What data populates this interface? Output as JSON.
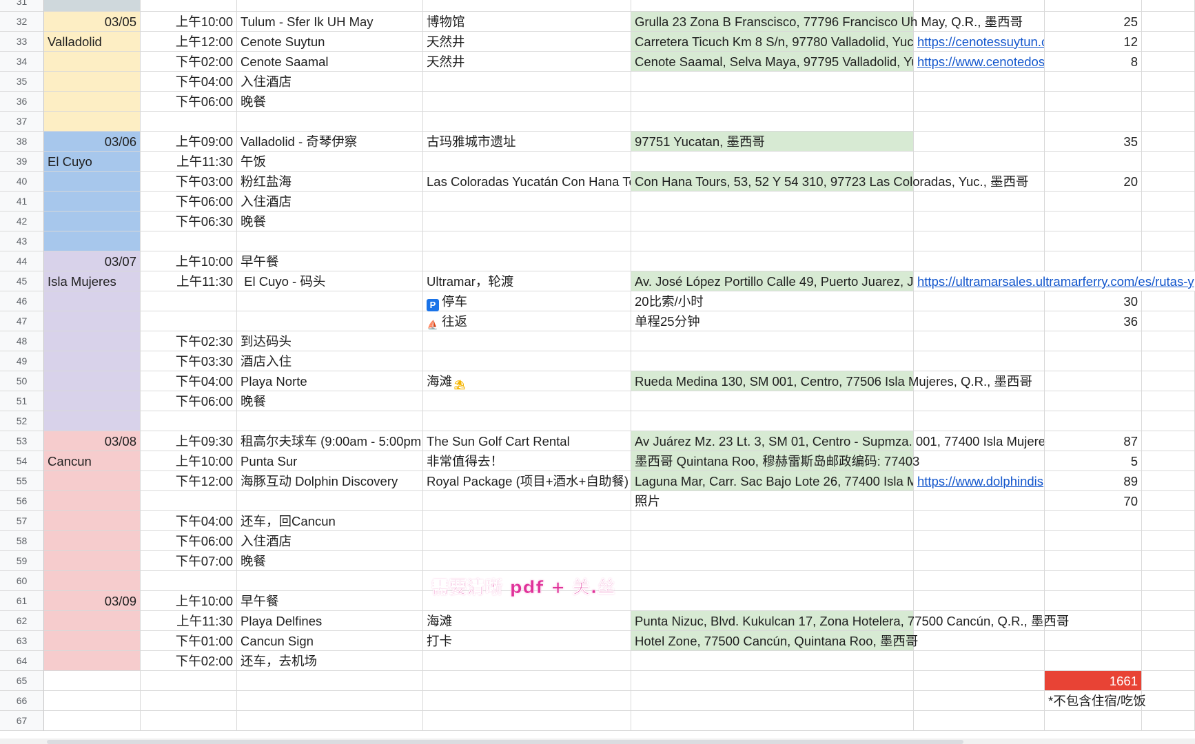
{
  "colors": {
    "yellow": "#fdeec4",
    "blue": "#a7c7ec",
    "lavender": "#d8d2ea",
    "pink": "#f6cccd",
    "green": "#d7ead3",
    "total_red": "#e84335",
    "link": "#1155cc"
  },
  "rows": [
    {
      "n": "31"
    },
    {
      "n": "32",
      "c1": "03/05",
      "c2": "上午10:00",
      "c3": "Tulum - Sfer Ik UH May",
      "c4": "博物馆",
      "c5": "Grulla 23 Zona B Franscisco, 77796 Francisco Uh May, Q.R., 墨西哥",
      "c7": "25"
    },
    {
      "n": "33",
      "c1": "Valladolid",
      "c2": "上午12:00",
      "c3": "Cenote Suytun",
      "c4": "天然井",
      "c5": "Carretera Ticuch Km 8 S/n, 97780 Valladolid, Yuc",
      "c6": "https://cenotessuytun.c",
      "c7": "12"
    },
    {
      "n": "34",
      "c2": "下午02:00",
      "c3": "Cenote Saamal",
      "c4": "天然井",
      "c5": "Cenote Saamal, Selva Maya, 97795 Valladolid, Yu",
      "c6": "https://www.cenotedos",
      "c7": "8"
    },
    {
      "n": "35",
      "c2": "下午04:00",
      "c3": "入住酒店"
    },
    {
      "n": "36",
      "c2": "下午06:00",
      "c3": "晚餐"
    },
    {
      "n": "37"
    },
    {
      "n": "38",
      "c1": "03/06",
      "c2": "上午09:00",
      "c3": "Valladolid - 奇琴伊察",
      "c4": "古玛雅城市遗址",
      "c5": "97751 Yucatan, 墨西哥",
      "c7": "35"
    },
    {
      "n": "39",
      "c1": "El Cuyo",
      "c2": "上午11:30",
      "c3": "午饭"
    },
    {
      "n": "40",
      "c2": "下午03:00",
      "c3": "粉红盐海",
      "c4": "Las Coloradas Yucatán Con Hana To",
      "c5": "Con Hana Tours, 53, 52 Y 54 310, 97723 Las Coloradas, Yuc., 墨西哥",
      "c7": "20"
    },
    {
      "n": "41",
      "c2": "下午06:00",
      "c3": "入住酒店"
    },
    {
      "n": "42",
      "c2": "下午06:30",
      "c3": "晚餐"
    },
    {
      "n": "43"
    },
    {
      "n": "44",
      "c1": "03/07",
      "c2": "上午10:00",
      "c3": "早午餐"
    },
    {
      "n": "45",
      "c1": "Isla Mujeres",
      "c2": "上午11:30",
      "c3": " El Cuyo - 码头",
      "c4": "Ultramar，轮渡",
      "c5": "Av. José López Portillo Calle 49, Puerto Juarez, J",
      "c6": "https://ultramarsales.ultramarferry.com/es/rutas-y"
    },
    {
      "n": "46",
      "c4": "停车",
      "c5": "20比索/小时",
      "c7": "30"
    },
    {
      "n": "47",
      "c4": "往返",
      "c5": "单程25分钟",
      "c7": "36"
    },
    {
      "n": "48",
      "c2": "下午02:30",
      "c3": "到达码头"
    },
    {
      "n": "49",
      "c2": "下午03:30",
      "c3": "酒店入住"
    },
    {
      "n": "50",
      "c2": "下午04:00",
      "c3": "Playa Norte",
      "c4": "海滩",
      "c5": "Rueda Medina 130, SM 001, Centro, 77506 Isla Mujeres, Q.R., 墨西哥"
    },
    {
      "n": "51",
      "c2": "下午06:00",
      "c3": "晚餐"
    },
    {
      "n": "52"
    },
    {
      "n": "53",
      "c1": "03/08",
      "c2": "上午09:30",
      "c3": "租高尔夫球车 (9:00am - 5:00pm",
      "c4": "The Sun Golf Cart Rental",
      "c5": "Av Juárez Mz. 23 Lt. 3, SM 01, Centro - Supmza. 001, 77400 Isla Mujere",
      "c7": "87"
    },
    {
      "n": "54",
      "c1": "Cancun",
      "c2": "上午10:00",
      "c3": "Punta Sur",
      "c4": "非常值得去！",
      "c5": "墨西哥 Quintana Roo, 穆赫雷斯岛邮政编码: 77403",
      "c7": "5"
    },
    {
      "n": "55",
      "c2": "下午12:00",
      "c3": "海豚互动 Dolphin Discovery",
      "c4": "Royal Package (项目+酒水+自助餐)",
      "c5": "Laguna Mar, Carr. Sac Bajo Lote 26, 77400 Isla M",
      "c6": "https://www.dolphindis",
      "c7": "89"
    },
    {
      "n": "56",
      "c5": "照片",
      "c7": "70"
    },
    {
      "n": "57",
      "c2": "下午04:00",
      "c3": "还车，回Cancun"
    },
    {
      "n": "58",
      "c2": "下午06:00",
      "c3": "入住酒店"
    },
    {
      "n": "59",
      "c2": "下午07:00",
      "c3": "晚餐"
    },
    {
      "n": "60"
    },
    {
      "n": "61",
      "c1": "03/09",
      "c2": "上午10:00",
      "c3": "早午餐"
    },
    {
      "n": "62",
      "c2": "上午11:30",
      "c3": "Playa Delfines",
      "c4": "海滩",
      "c5": "Punta Nizuc, Blvd. Kukulcan 17, Zona Hotelera, 77500 Cancún, Q.R., 墨西哥"
    },
    {
      "n": "63",
      "c2": "下午01:00",
      "c3": "Cancun Sign",
      "c4": "打卡",
      "c5": "Hotel Zone, 77500 Cancún, Quintana Roo, 墨西哥"
    },
    {
      "n": "64",
      "c2": "下午02:00",
      "c3": "还车，去机场"
    },
    {
      "n": "65",
      "c7": "1661"
    },
    {
      "n": "66",
      "c7": "*不包含住宿/吃饭"
    },
    {
      "n": "67"
    }
  ],
  "overlay_note": "需要清晰 pdf + 关.丝"
}
